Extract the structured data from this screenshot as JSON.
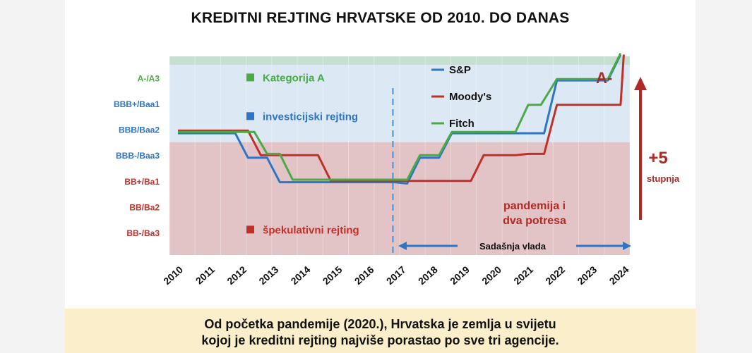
{
  "title": "KREDITNI REJTING HRVATSKE OD 2010. DO DANAS",
  "footer": {
    "line1": "Od početka pandemije (2020.), Hrvatska je zemlja u svijetu",
    "line2": "kojoj je kreditni rejting najviše porastao po sve tri agencije."
  },
  "chart_data": {
    "type": "line",
    "x": [
      "2010",
      "2011",
      "2012",
      "2013",
      "2014",
      "2015",
      "2016",
      "2017",
      "2018",
      "2019",
      "2020",
      "2021",
      "2022",
      "2023",
      "2024"
    ],
    "y_tick_labels": [
      "BB-/Ba3",
      "BB/Ba2",
      "BB+/Ba1",
      "BBB-/Baa3",
      "BBB/Baa2",
      "BBB+/Baa1",
      "A-/A3"
    ],
    "series": [
      {
        "name": "S&P",
        "color": "#2e75c5",
        "points": [
          [
            2010.0,
            3.85
          ],
          [
            2011.8,
            3.85
          ],
          [
            2012.2,
            2.9
          ],
          [
            2012.8,
            2.9
          ],
          [
            2013.2,
            1.95
          ],
          [
            2016.8,
            1.95
          ],
          [
            2017.2,
            1.9
          ],
          [
            2017.6,
            2.9
          ],
          [
            2018.2,
            2.9
          ],
          [
            2018.6,
            3.85
          ],
          [
            2020.6,
            3.85
          ],
          [
            2021.0,
            3.85
          ],
          [
            2021.5,
            3.85
          ],
          [
            2021.9,
            5.9
          ],
          [
            2023.5,
            5.9
          ],
          [
            2023.9,
            6.9
          ]
        ]
      },
      {
        "name": "Moody's",
        "color": "#c0302a",
        "points": [
          [
            2010.0,
            3.95
          ],
          [
            2012.2,
            3.95
          ],
          [
            2012.6,
            3.0
          ],
          [
            2014.4,
            3.0
          ],
          [
            2014.8,
            2.0
          ],
          [
            2016.8,
            2.0
          ],
          [
            2017.2,
            2.0
          ],
          [
            2019.2,
            2.0
          ],
          [
            2019.6,
            3.0
          ],
          [
            2020.6,
            3.0
          ],
          [
            2021.0,
            3.05
          ],
          [
            2021.5,
            3.05
          ],
          [
            2021.9,
            4.95
          ],
          [
            2023.5,
            4.95
          ],
          [
            2023.9,
            4.95
          ],
          [
            2024.0,
            6.9
          ]
        ]
      },
      {
        "name": "Fitch",
        "color": "#4aaa47",
        "points": [
          [
            2010.0,
            3.9
          ],
          [
            2012.4,
            3.9
          ],
          [
            2012.8,
            3.05
          ],
          [
            2013.2,
            3.05
          ],
          [
            2013.6,
            2.05
          ],
          [
            2016.8,
            2.05
          ],
          [
            2017.2,
            2.05
          ],
          [
            2017.6,
            3.0
          ],
          [
            2018.2,
            3.0
          ],
          [
            2018.6,
            3.9
          ],
          [
            2019.8,
            3.9
          ],
          [
            2020.2,
            3.9
          ],
          [
            2020.6,
            3.9
          ],
          [
            2021.0,
            4.95
          ],
          [
            2021.4,
            4.95
          ],
          [
            2021.9,
            5.95
          ],
          [
            2023.5,
            5.95
          ],
          [
            2023.9,
            6.95
          ]
        ]
      }
    ],
    "category_labels": [
      {
        "text": "Kategorija A",
        "color": "#4aaa47"
      },
      {
        "text": "investicijski rejting",
        "color": "#2e75c5"
      },
      {
        "text": "špekulativni rejting",
        "color": "#c0302a"
      }
    ],
    "band_colors": {
      "category_a": "#c7dfd0",
      "investment": "#dce8f3",
      "speculative": "#e2c4c7"
    },
    "annotations": {
      "final_rating": "A-",
      "increase": "+5",
      "increase_sub": "stupnja",
      "pandemic": [
        "pandemija i",
        "dva potresa"
      ],
      "government": "Sadašnja vlada"
    },
    "divider_year": 2016.75,
    "xlabel": "",
    "ylabel": ""
  }
}
